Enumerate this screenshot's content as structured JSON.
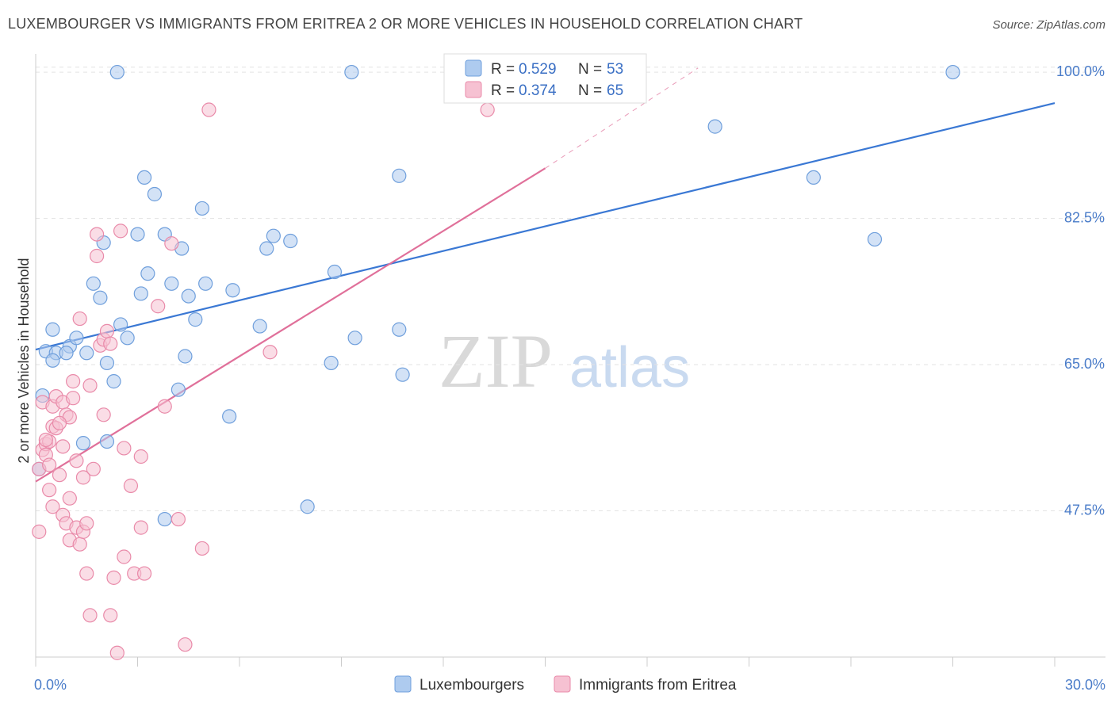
{
  "title": "LUXEMBOURGER VS IMMIGRANTS FROM ERITREA 2 OR MORE VEHICLES IN HOUSEHOLD CORRELATION CHART",
  "source": "Source: ZipAtlas.com",
  "watermark": {
    "zip": "ZIP",
    "atlas": "atlas"
  },
  "colors": {
    "blue_fill": "#aecbef",
    "blue_stroke": "#6f9fdc",
    "blue_line": "#3a78d4",
    "pink_fill": "#f6c1d2",
    "pink_stroke": "#e98aa9",
    "pink_line": "#e0709a",
    "axis_text": "#4a7cc9",
    "grid": "#e3e3e3"
  },
  "legend": {
    "rows": [
      {
        "r_label": "R = ",
        "r_value": "0.529",
        "n_label": "N = ",
        "n_value": "53",
        "series": "blue"
      },
      {
        "r_label": "R = ",
        "r_value": "0.374",
        "n_label": "N = ",
        "n_value": "65",
        "series": "pink"
      }
    ]
  },
  "bottom_legend": [
    {
      "label": "Luxembourgers",
      "series": "blue"
    },
    {
      "label": "Immigrants from Eritrea",
      "series": "pink"
    }
  ],
  "chart_data": {
    "type": "scatter",
    "xlabel": "",
    "ylabel": "2 or more Vehicles in Household",
    "xlim": [
      0,
      30
    ],
    "ylim": [
      30,
      102
    ],
    "y_ticks": [
      {
        "value": 47.5,
        "label": "47.5%"
      },
      {
        "value": 65.0,
        "label": "65.0%"
      },
      {
        "value": 82.5,
        "label": "82.5%"
      },
      {
        "value": 100.0,
        "label": "100.0%"
      }
    ],
    "x_tick_values": [
      0,
      3,
      6,
      9,
      12,
      15,
      18,
      21,
      24,
      27,
      30
    ],
    "x_tick_labels": [
      {
        "value": 0,
        "label": "0.0%"
      },
      {
        "value": 30,
        "label": "30.0%"
      }
    ],
    "grid": true,
    "series": [
      {
        "name": "Luxembourgers",
        "color": "blue",
        "trend": {
          "x": [
            0.0,
            30.0
          ],
          "y": [
            66.8,
            96.3
          ]
        },
        "points": [
          [
            0.2,
            61.3
          ],
          [
            0.3,
            66.6
          ],
          [
            0.5,
            69.2
          ],
          [
            0.6,
            66.4
          ],
          [
            0.5,
            65.5
          ],
          [
            1.0,
            67.2
          ],
          [
            1.2,
            68.2
          ],
          [
            0.9,
            66.4
          ],
          [
            1.5,
            66.4
          ],
          [
            1.7,
            74.7
          ],
          [
            1.9,
            73.0
          ],
          [
            2.0,
            79.6
          ],
          [
            2.1,
            65.2
          ],
          [
            2.3,
            63.0
          ],
          [
            2.5,
            69.8
          ],
          [
            2.7,
            68.2
          ],
          [
            3.0,
            80.6
          ],
          [
            3.1,
            73.5
          ],
          [
            3.2,
            87.4
          ],
          [
            3.3,
            75.9
          ],
          [
            3.5,
            85.4
          ],
          [
            3.8,
            80.6
          ],
          [
            4.0,
            74.7
          ],
          [
            4.3,
            78.9
          ],
          [
            4.4,
            66.0
          ],
          [
            4.5,
            73.2
          ],
          [
            4.7,
            70.4
          ],
          [
            4.9,
            83.7
          ],
          [
            5.0,
            74.7
          ],
          [
            5.8,
            73.9
          ],
          [
            6.6,
            69.6
          ],
          [
            6.8,
            78.9
          ],
          [
            7.0,
            80.4
          ],
          [
            7.5,
            79.8
          ],
          [
            8.7,
            65.2
          ],
          [
            8.8,
            76.1
          ],
          [
            9.4,
            68.2
          ],
          [
            9.3,
            100.0
          ],
          [
            10.7,
            69.2
          ],
          [
            10.7,
            87.6
          ],
          [
            10.8,
            63.8
          ],
          [
            20.0,
            93.5
          ],
          [
            22.9,
            87.4
          ],
          [
            24.7,
            80.0
          ],
          [
            27.0,
            100.0
          ],
          [
            1.4,
            55.6
          ],
          [
            2.1,
            55.8
          ],
          [
            4.2,
            62.0
          ],
          [
            5.7,
            58.8
          ],
          [
            8.0,
            48.0
          ],
          [
            3.8,
            46.5
          ],
          [
            0.1,
            52.5
          ],
          [
            2.4,
            100.0
          ]
        ]
      },
      {
        "name": "Immigrants from Eritrea",
        "color": "pink",
        "trend": {
          "x": [
            0.0,
            15.0
          ],
          "y": [
            51.0,
            88.5
          ]
        },
        "trend_ext": {
          "x": [
            15.0,
            19.5
          ],
          "y": [
            88.5,
            100.5
          ]
        },
        "points": [
          [
            0.1,
            52.5
          ],
          [
            0.1,
            45.0
          ],
          [
            0.2,
            54.8
          ],
          [
            0.2,
            60.5
          ],
          [
            0.3,
            55.5
          ],
          [
            0.3,
            54.2
          ],
          [
            0.4,
            55.8
          ],
          [
            0.4,
            53.0
          ],
          [
            0.5,
            60.0
          ],
          [
            0.5,
            57.6
          ],
          [
            0.5,
            48.0
          ],
          [
            0.6,
            61.2
          ],
          [
            0.6,
            57.4
          ],
          [
            0.7,
            51.8
          ],
          [
            0.8,
            55.2
          ],
          [
            0.8,
            60.5
          ],
          [
            0.8,
            47.0
          ],
          [
            0.9,
            59.0
          ],
          [
            0.9,
            46.0
          ],
          [
            1.0,
            58.7
          ],
          [
            1.0,
            49.0
          ],
          [
            1.0,
            44.0
          ],
          [
            1.1,
            63.0
          ],
          [
            1.1,
            61.0
          ],
          [
            1.2,
            53.5
          ],
          [
            1.2,
            45.5
          ],
          [
            1.3,
            70.5
          ],
          [
            1.3,
            43.5
          ],
          [
            1.4,
            51.5
          ],
          [
            1.4,
            45.0
          ],
          [
            1.5,
            40.0
          ],
          [
            1.6,
            35.0
          ],
          [
            1.7,
            52.5
          ],
          [
            1.8,
            80.6
          ],
          [
            1.8,
            78.0
          ],
          [
            1.9,
            67.3
          ],
          [
            2.0,
            59.0
          ],
          [
            2.0,
            68.0
          ],
          [
            2.1,
            69.0
          ],
          [
            2.2,
            35.0
          ],
          [
            2.3,
            39.5
          ],
          [
            2.4,
            30.5
          ],
          [
            2.5,
            81.0
          ],
          [
            2.6,
            55.0
          ],
          [
            2.6,
            42.0
          ],
          [
            2.8,
            50.5
          ],
          [
            2.9,
            40.0
          ],
          [
            3.1,
            54.0
          ],
          [
            3.1,
            45.5
          ],
          [
            3.2,
            40.0
          ],
          [
            3.6,
            72.0
          ],
          [
            3.8,
            60.0
          ],
          [
            4.0,
            79.5
          ],
          [
            4.2,
            46.5
          ],
          [
            4.4,
            31.5
          ],
          [
            4.9,
            43.0
          ],
          [
            5.1,
            95.5
          ],
          [
            6.9,
            66.5
          ],
          [
            13.3,
            95.5
          ],
          [
            0.4,
            50.0
          ],
          [
            0.7,
            58.0
          ],
          [
            1.5,
            46.0
          ],
          [
            0.3,
            56.0
          ],
          [
            2.2,
            67.5
          ],
          [
            1.6,
            62.5
          ]
        ]
      }
    ]
  }
}
